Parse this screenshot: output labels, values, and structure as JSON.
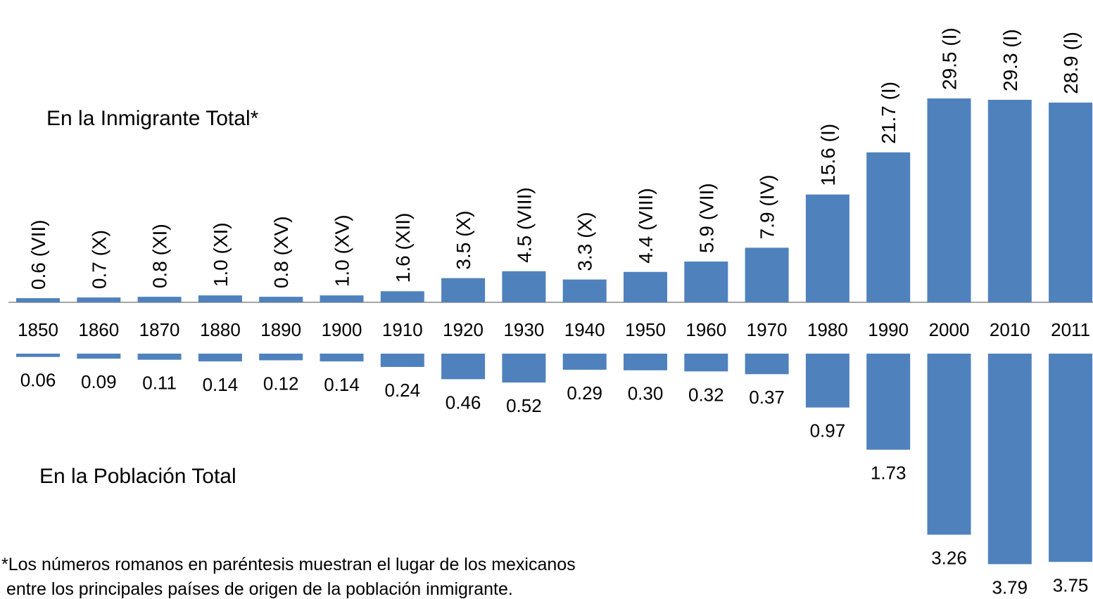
{
  "chart_data": {
    "type": "bar",
    "categories": [
      "1850",
      "1860",
      "1870",
      "1880",
      "1890",
      "1900",
      "1910",
      "1920",
      "1930",
      "1940",
      "1950",
      "1960",
      "1970",
      "1980",
      "1990",
      "2000",
      "2010",
      "2011"
    ],
    "series": [
      {
        "name": "En la Inmigrante Total*",
        "color": "#4f81bd",
        "direction": "up",
        "values": [
          0.6,
          0.7,
          0.8,
          1.0,
          0.8,
          1.0,
          1.6,
          3.5,
          4.5,
          3.3,
          4.4,
          5.9,
          7.9,
          15.6,
          21.7,
          29.5,
          29.3,
          28.9
        ],
        "value_labels": [
          "0.6 (VII)",
          "0.7 (X)",
          "0.8 (XI)",
          "1.0 (XI)",
          "0.8 (XV)",
          "1.0 (XV)",
          "1.6 (XII)",
          "3.5 (X)",
          "4.5 (VIII)",
          "3.3 (X)",
          "4.4 (VIII)",
          "5.9 (VII)",
          "7.9 (IV)",
          "15.6 (I)",
          "21.7 (I)",
          "29.5 (I)",
          "29.3 (I)",
          "28.9 (I)"
        ]
      },
      {
        "name": "En la Población Total",
        "color": "#4f81bd",
        "direction": "down",
        "values": [
          0.06,
          0.09,
          0.11,
          0.14,
          0.12,
          0.14,
          0.24,
          0.46,
          0.52,
          0.29,
          0.3,
          0.32,
          0.37,
          0.97,
          1.73,
          3.26,
          3.79,
          3.75
        ],
        "value_labels": [
          "0.06",
          "0.09",
          "0.11",
          "0.14",
          "0.12",
          "0.14",
          "0.24",
          "0.46",
          "0.52",
          "0.29",
          "0.30",
          "0.32",
          "0.37",
          "0.97",
          "1.73",
          "3.26",
          "3.79",
          "3.75"
        ]
      }
    ],
    "annotations": [
      "*Los números romanos en paréntesis muestran el lugar de los mexicanos",
      " entre los principales países de origen de la población inmigrante."
    ]
  }
}
